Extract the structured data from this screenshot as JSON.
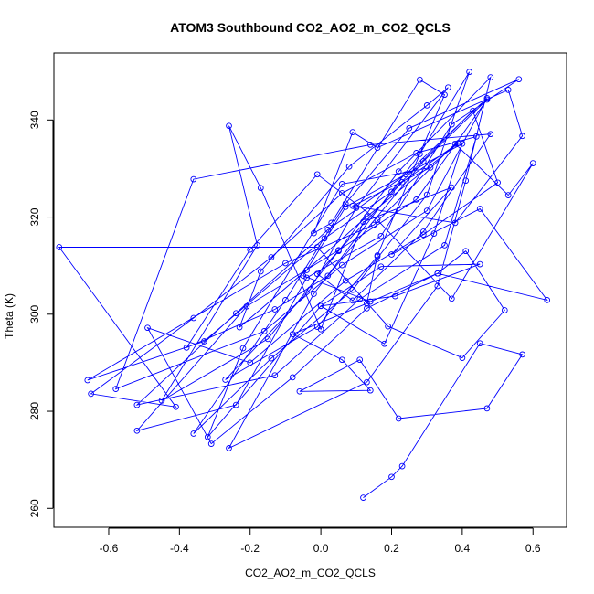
{
  "chart_data": {
    "type": "line",
    "title": "ATOM3 Southbound CO2_AO2_m_CO2_QCLS",
    "xlabel": "CO2_AO2_m_CO2_QCLS",
    "ylabel": "Theta (K)",
    "xlim": [
      -0.755,
      0.695
    ],
    "ylim": [
      256.1,
      353.8
    ],
    "xticks": [
      -0.6,
      -0.4,
      -0.2,
      0.0,
      0.2,
      0.4,
      0.6
    ],
    "xtick_labels": [
      "-0.6",
      "-0.4",
      "-0.2",
      "0.0",
      "0.2",
      "0.4",
      "0.6"
    ],
    "yticks": [
      260,
      280,
      300,
      320,
      340
    ],
    "ytick_labels": [
      "260",
      "280",
      "300",
      "320",
      "340"
    ],
    "grid": false,
    "markers": "open-circle",
    "color": "#0000ff",
    "series": [
      {
        "points": [
          [
            0.12,
            262.2
          ],
          [
            0.2,
            266.5
          ],
          [
            0.23,
            268.7
          ],
          [
            0.45,
            294.0
          ],
          [
            0.57,
            291.7
          ],
          [
            0.47,
            280.6
          ],
          [
            0.22,
            278.5
          ],
          [
            0.11,
            290.6
          ],
          [
            -0.06,
            284.1
          ],
          [
            0.14,
            284.3
          ],
          [
            0.06,
            290.6
          ],
          [
            -0.08,
            295.9
          ],
          [
            0.13,
            302.2
          ],
          [
            0.16,
            312.1
          ],
          [
            0.35,
            345.2
          ],
          [
            0.28,
            348.3
          ],
          [
            0.03,
            318.8
          ],
          [
            -0.02,
            316.7
          ],
          [
            0.09,
            337.5
          ],
          [
            0.16,
            334.3
          ],
          [
            0.53,
            346.2
          ],
          [
            0.57,
            336.7
          ],
          [
            0.38,
            318.8
          ],
          [
            0.09,
            322.3
          ],
          [
            0.31,
            330.2
          ],
          [
            0.06,
            326.8
          ],
          [
            -0.22,
            293.0
          ],
          [
            -0.32,
            274.7
          ],
          [
            0.0,
            301.7
          ],
          [
            0.21,
            303.7
          ],
          [
            0.45,
            310.3
          ],
          [
            0.17,
            309.8
          ],
          [
            0.0,
            301.7
          ],
          [
            0.18,
            293.9
          ],
          [
            0.32,
            316.6
          ],
          [
            0.4,
            335.1
          ],
          [
            0.07,
            322.1
          ],
          [
            -0.05,
            307.9
          ],
          [
            0.14,
            302.6
          ],
          [
            0.33,
            308.4
          ],
          [
            0.64,
            302.9
          ],
          [
            0.45,
            321.7
          ],
          [
            0.2,
            312.3
          ],
          [
            0.37,
            326.1
          ],
          [
            0.12,
            319.0
          ],
          [
            0.0,
            296.9
          ],
          [
            -0.17,
            326.0
          ],
          [
            -0.26,
            338.8
          ],
          [
            -0.18,
            314.2
          ],
          [
            -0.45,
            282.2
          ],
          [
            -0.15,
            294.9
          ],
          [
            0.05,
            313.0
          ],
          [
            0.22,
            329.4
          ],
          [
            0.48,
            348.8
          ],
          [
            0.41,
            327.5
          ],
          [
            0.33,
            305.8
          ],
          [
            0.13,
            286.0
          ],
          [
            -0.26,
            272.4
          ],
          [
            -0.02,
            304.2
          ],
          [
            0.28,
            333.0
          ],
          [
            0.42,
            349.9
          ],
          [
            0.3,
            324.6
          ],
          [
            0.09,
            305.0
          ],
          [
            -0.14,
            290.9
          ],
          [
            -0.36,
            275.4
          ],
          [
            -0.1,
            302.9
          ],
          [
            0.07,
            322.8
          ],
          [
            0.25,
            338.3
          ],
          [
            0.56,
            348.4
          ],
          [
            0.37,
            339.1
          ],
          [
            0.17,
            316.1
          ],
          [
            -0.04,
            307.5
          ],
          [
            -0.24,
            281.3
          ],
          [
            -0.52,
            276.0
          ],
          [
            -0.21,
            301.6
          ],
          [
            0.05,
            313.2
          ],
          [
            0.27,
            323.6
          ],
          [
            0.47,
            344.2
          ],
          [
            0.29,
            331.5
          ],
          [
            0.02,
            307.9
          ],
          [
            -0.13,
            301.0
          ],
          [
            -0.38,
            293.1
          ],
          [
            -0.2,
            313.3
          ],
          [
            -0.01,
            328.8
          ],
          [
            0.16,
            319.4
          ],
          [
            0.37,
            303.2
          ],
          [
            0.6,
            331.1
          ],
          [
            0.53,
            324.5
          ],
          [
            0.38,
            335.1
          ],
          [
            0.15,
            318.4
          ],
          [
            -0.1,
            310.5
          ],
          [
            -0.66,
            286.4
          ],
          [
            -0.33,
            294.4
          ],
          [
            0.01,
            315.6
          ],
          [
            0.2,
            325.2
          ],
          [
            0.43,
            341.9
          ],
          [
            0.5,
            327.1
          ],
          [
            0.29,
            316.4
          ],
          [
            0.07,
            306.9
          ],
          [
            -0.2,
            290.0
          ],
          [
            -0.49,
            297.2
          ],
          [
            -0.31,
            273.3
          ],
          [
            -0.08,
            287.0
          ],
          [
            0.13,
            301.2
          ],
          [
            0.33,
            308.4
          ],
          [
            0.41,
            313.0
          ],
          [
            0.52,
            300.8
          ],
          [
            0.4,
            291.0
          ],
          [
            0.19,
            297.5
          ],
          [
            -0.01,
            313.8
          ],
          [
            -0.74,
            313.8
          ],
          [
            -0.41,
            280.9
          ],
          [
            -0.65,
            283.6
          ],
          [
            -0.36,
            299.2
          ],
          [
            -0.14,
            311.7
          ],
          [
            0.06,
            324.9
          ],
          [
            0.27,
            333.2
          ],
          [
            0.44,
            336.6
          ],
          [
            0.35,
            314.2
          ],
          [
            0.11,
            303.1
          ],
          [
            -0.13,
            287.4
          ],
          [
            -0.52,
            281.3
          ],
          [
            -0.24,
            300.2
          ],
          [
            0.02,
            317.4
          ],
          [
            0.24,
            328.8
          ],
          [
            0.47,
            344.5
          ],
          [
            0.3,
            321.3
          ],
          [
            0.06,
            310.1
          ],
          [
            -0.16,
            296.5
          ],
          [
            -0.58,
            284.6
          ],
          [
            -0.36,
            327.8
          ],
          [
            0.14,
            334.9
          ],
          [
            0.48,
            337.1
          ],
          [
            0.29,
            317.0
          ],
          [
            0.09,
            302.8
          ],
          [
            -0.01,
            308.3
          ],
          [
            0.23,
            327.2
          ],
          [
            0.39,
            335.3
          ],
          [
            0.13,
            320.1
          ],
          [
            -0.04,
            309.1
          ],
          [
            -0.23,
            297.3
          ],
          [
            -0.17,
            308.8
          ],
          [
            0.08,
            330.4
          ],
          [
            0.3,
            343.0
          ],
          [
            0.36,
            346.7
          ],
          [
            0.1,
            321.9
          ],
          [
            -0.03,
            305.1
          ],
          [
            -0.27,
            286.5
          ],
          [
            -0.01,
            297.4
          ],
          [
            0.16,
            311.9
          ]
        ]
      }
    ]
  }
}
